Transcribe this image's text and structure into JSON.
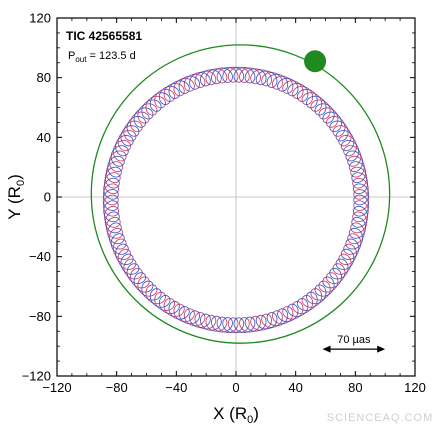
{
  "chart_data": {
    "type": "line",
    "title": "TIC 42565581",
    "subtitle_prefix": "P",
    "subtitle_sub": "out",
    "subtitle_value": " = 123.5 d",
    "xlabel_main": "X (R",
    "xlabel_sub": "0",
    "xlabel_close": ")",
    "ylabel_main": "Y (R",
    "ylabel_sub": "0",
    "ylabel_close": ")",
    "xlim": [
      -120,
      120
    ],
    "ylim": [
      -120,
      120
    ],
    "xticks": [
      -120,
      -80,
      -40,
      0,
      40,
      80,
      120
    ],
    "yticks": [
      -120,
      -80,
      -40,
      0,
      40,
      80,
      120
    ],
    "x_tick_labels": [
      "−120",
      "−80",
      "−40",
      "0",
      "40",
      "80",
      "120"
    ],
    "y_tick_labels": [
      "−120",
      "−80",
      "−40",
      "0",
      "40",
      "80",
      "120"
    ],
    "zero_lines": true,
    "series": [
      {
        "kind": "outer-orbit",
        "center": [
          3,
          2
        ],
        "radius": 100,
        "color": "#1f8a1f"
      },
      {
        "kind": "inner-epicycles",
        "center": [
          0,
          -2
        ],
        "radius": 84,
        "loop_radius": 5,
        "loops": 70,
        "colors": [
          "#c0245a",
          "#2a3fb8"
        ]
      },
      {
        "kind": "companion-marker",
        "x": 53,
        "y": 91,
        "color": "#1f8a1f"
      }
    ],
    "scale_bar": {
      "label": "70 µas",
      "x_from": 58,
      "x_to": 100,
      "y": -102
    },
    "watermark": "SCIENCEAQ.COM"
  }
}
